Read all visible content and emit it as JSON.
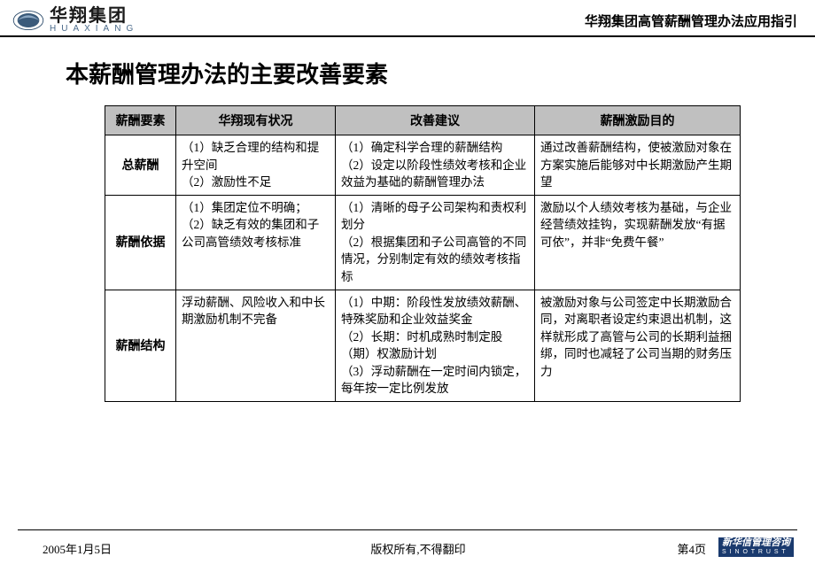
{
  "header": {
    "logo_cn": "华翔集团",
    "logo_en": "HUAXIANG",
    "subtitle": "华翔集团高管薪酬管理办法应用指引"
  },
  "title": "本薪酬管理办法的主要改善要素",
  "columns": [
    "薪酬要素",
    "华翔现有状况",
    "改善建议",
    "薪酬激励目的"
  ],
  "rows": [
    {
      "head": "总薪酬",
      "current": "（1）缺乏合理的结构和提升空间\n（2）激励性不足",
      "suggest": "（1）确定科学合理的薪酬结构\n（2）设定以阶段性绩效考核和企业效益为基础的薪酬管理办法",
      "goal": "通过改善薪酬结构，使被激励对象在方案实施后能够对中长期激励产生期望"
    },
    {
      "head": "薪酬依据",
      "current": "（1）集团定位不明确；\n（2）缺乏有效的集团和子公司高管绩效考核标准",
      "suggest": "（1）清晰的母子公司架构和责权利划分\n（2）根据集团和子公司高管的不同情况，分别制定有效的绩效考核指标",
      "goal": "激励以个人绩效考核为基础，与企业经营绩效挂钩，实现薪酬发放“有据可依”，并非“免费午餐”"
    },
    {
      "head": "薪酬结构",
      "current": "浮动薪酬、风险收入和中长期激励机制不完备",
      "suggest": "（1）中期：阶段性发放绩效薪酬、特殊奖励和企业效益奖金\n（2）长期：时机成熟时制定股（期）权激励计划\n（3）浮动薪酬在一定时间内锁定，每年按一定比例发放",
      "goal": "被激励对象与公司签定中长期激励合同，对离职者设定约束退出机制，这样就形成了高管与公司的长期利益捆绑，同时也减轻了公司当期的财务压力"
    }
  ],
  "footer": {
    "date": "2005年1月5日",
    "copyright": "版权所有,不得翻印",
    "page": "第4页",
    "sino_cn": "新华信管理咨询",
    "sino_en": "S I N O T R U S T"
  },
  "colors": {
    "th_bg": "#c0c0c0",
    "border": "#000000",
    "sino_bg": "#1a3a6e"
  }
}
